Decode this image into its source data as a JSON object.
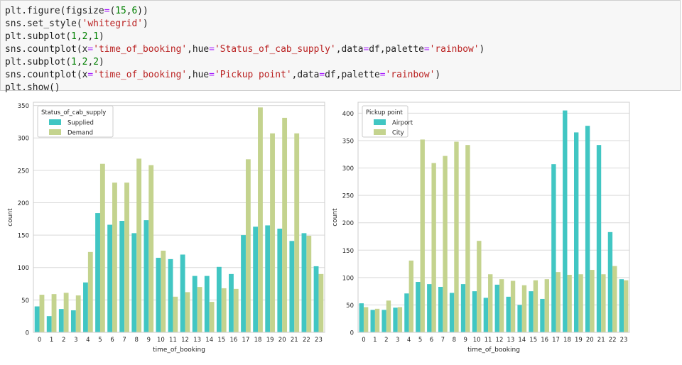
{
  "code": {
    "lines": [
      [
        {
          "t": "plt.figure(figsize",
          "c": "n"
        },
        {
          "t": "=",
          "c": "eq"
        },
        {
          "t": "(",
          "c": "n"
        },
        {
          "t": "15",
          "c": "num"
        },
        {
          "t": ",",
          "c": "n"
        },
        {
          "t": "6",
          "c": "num"
        },
        {
          "t": "))",
          "c": "n"
        }
      ],
      [
        {
          "t": "sns.set_style(",
          "c": "n"
        },
        {
          "t": "'whitegrid'",
          "c": "str"
        },
        {
          "t": ")",
          "c": "n"
        }
      ],
      [
        {
          "t": "plt.subplot(",
          "c": "n"
        },
        {
          "t": "1",
          "c": "num"
        },
        {
          "t": ",",
          "c": "n"
        },
        {
          "t": "2",
          "c": "num"
        },
        {
          "t": ",",
          "c": "n"
        },
        {
          "t": "1",
          "c": "num"
        },
        {
          "t": ")",
          "c": "n"
        }
      ],
      [
        {
          "t": "sns.countplot(x",
          "c": "n"
        },
        {
          "t": "=",
          "c": "eq"
        },
        {
          "t": "'time_of_booking'",
          "c": "str"
        },
        {
          "t": ",hue",
          "c": "n"
        },
        {
          "t": "=",
          "c": "eq"
        },
        {
          "t": "'Status_of_cab_supply'",
          "c": "str"
        },
        {
          "t": ",data",
          "c": "n"
        },
        {
          "t": "=",
          "c": "eq"
        },
        {
          "t": "df,palette",
          "c": "n"
        },
        {
          "t": "=",
          "c": "eq"
        },
        {
          "t": "'rainbow'",
          "c": "str"
        },
        {
          "t": ")",
          "c": "n"
        }
      ],
      [
        {
          "t": "plt.subplot(",
          "c": "n"
        },
        {
          "t": "1",
          "c": "num"
        },
        {
          "t": ",",
          "c": "n"
        },
        {
          "t": "2",
          "c": "num"
        },
        {
          "t": ",",
          "c": "n"
        },
        {
          "t": "2",
          "c": "num"
        },
        {
          "t": ")",
          "c": "n"
        }
      ],
      [
        {
          "t": "sns.countplot(x",
          "c": "n"
        },
        {
          "t": "=",
          "c": "eq"
        },
        {
          "t": "'time_of_booking'",
          "c": "str"
        },
        {
          "t": ",hue",
          "c": "n"
        },
        {
          "t": "=",
          "c": "eq"
        },
        {
          "t": "'Pickup point'",
          "c": "str"
        },
        {
          "t": ",data",
          "c": "n"
        },
        {
          "t": "=",
          "c": "eq"
        },
        {
          "t": "df,palette",
          "c": "n"
        },
        {
          "t": "=",
          "c": "eq"
        },
        {
          "t": "'rainbow'",
          "c": "str"
        },
        {
          "t": ")",
          "c": "n"
        }
      ],
      [
        {
          "t": "plt.show()",
          "c": "n"
        }
      ]
    ]
  },
  "colors": {
    "series_a": "#41c6c3",
    "series_b": "#c4d38e",
    "grid": "#d9d9d9",
    "frame": "#cccccc",
    "text": "#262626"
  },
  "chart_data": [
    {
      "type": "bar",
      "title": "",
      "xlabel": "time_of_booking",
      "ylabel": "count",
      "ylim": [
        0,
        355
      ],
      "yticks": [
        0,
        50,
        100,
        150,
        200,
        250,
        300,
        350
      ],
      "grid": true,
      "legend_position": "top-left",
      "legend_title": "Status_of_cab_supply",
      "categories": [
        "0",
        "1",
        "2",
        "3",
        "4",
        "5",
        "6",
        "7",
        "8",
        "9",
        "10",
        "11",
        "12",
        "13",
        "14",
        "15",
        "16",
        "17",
        "18",
        "19",
        "20",
        "21",
        "22",
        "23"
      ],
      "series": [
        {
          "name": "Supplied",
          "values": [
            40,
            25,
            36,
            34,
            77,
            184,
            166,
            172,
            153,
            173,
            115,
            113,
            120,
            87,
            87,
            101,
            90,
            150,
            163,
            165,
            160,
            141,
            153,
            102
          ]
        },
        {
          "name": "Demand",
          "values": [
            58,
            59,
            61,
            57,
            124,
            260,
            231,
            231,
            268,
            258,
            126,
            55,
            62,
            70,
            47,
            68,
            67,
            267,
            347,
            307,
            331,
            307,
            149,
            90
          ]
        }
      ]
    },
    {
      "type": "bar",
      "title": "",
      "xlabel": "time_of_booking",
      "ylabel": "count",
      "ylim": [
        0,
        420
      ],
      "yticks": [
        0,
        50,
        100,
        150,
        200,
        250,
        300,
        350,
        400
      ],
      "grid": true,
      "legend_position": "top-left",
      "legend_title": "Pickup point",
      "categories": [
        "0",
        "1",
        "2",
        "3",
        "4",
        "5",
        "6",
        "7",
        "8",
        "9",
        "10",
        "11",
        "12",
        "13",
        "14",
        "15",
        "16",
        "17",
        "18",
        "19",
        "20",
        "21",
        "22",
        "23"
      ],
      "series": [
        {
          "name": "Airport",
          "values": [
            53,
            41,
            41,
            45,
            71,
            92,
            88,
            83,
            72,
            88,
            75,
            63,
            87,
            65,
            50,
            75,
            61,
            307,
            405,
            365,
            377,
            342,
            183,
            97
          ]
        },
        {
          "name": "City",
          "values": [
            46,
            43,
            58,
            46,
            131,
            352,
            309,
            322,
            348,
            342,
            167,
            106,
            97,
            94,
            86,
            95,
            97,
            110,
            105,
            106,
            114,
            106,
            121,
            95
          ]
        }
      ]
    }
  ]
}
